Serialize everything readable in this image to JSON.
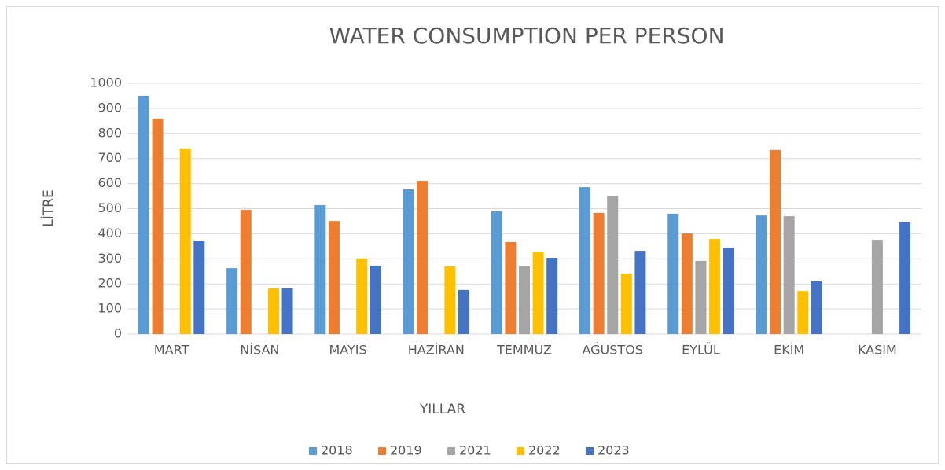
{
  "chart_data": {
    "type": "bar",
    "title": "WATER CONSUMPTION PER PERSON",
    "x_label": "YILLAR",
    "y_label": "LİTRE",
    "categories": [
      "MART",
      "NİSAN",
      "MAYIS",
      "HAZİRAN",
      "TEMMUZ",
      "AĞUSTOS",
      "EYLÜL",
      "EKİM",
      "KASIM"
    ],
    "series": [
      {
        "name": "2018",
        "color": "#5b9bd5",
        "values": [
          950,
          263,
          514,
          577,
          489,
          586,
          480,
          473,
          null
        ]
      },
      {
        "name": "2019",
        "color": "#ed7d31",
        "values": [
          859,
          495,
          451,
          611,
          367,
          483,
          401,
          734,
          null
        ]
      },
      {
        "name": "2021",
        "color": "#a5a5a5",
        "values": [
          null,
          null,
          null,
          null,
          270,
          549,
          292,
          470,
          376
        ]
      },
      {
        "name": "2022",
        "color": "#ffc000",
        "values": [
          740,
          182,
          301,
          270,
          329,
          241,
          379,
          172,
          null
        ]
      },
      {
        "name": "2023",
        "color": "#4472c4",
        "values": [
          373,
          182,
          273,
          176,
          304,
          332,
          345,
          210,
          448
        ]
      }
    ],
    "ylim": [
      0,
      1000
    ],
    "yticks": [
      0,
      100,
      200,
      300,
      400,
      500,
      600,
      700,
      800,
      900,
      1000
    ],
    "grid": true,
    "legend": "bottom"
  }
}
